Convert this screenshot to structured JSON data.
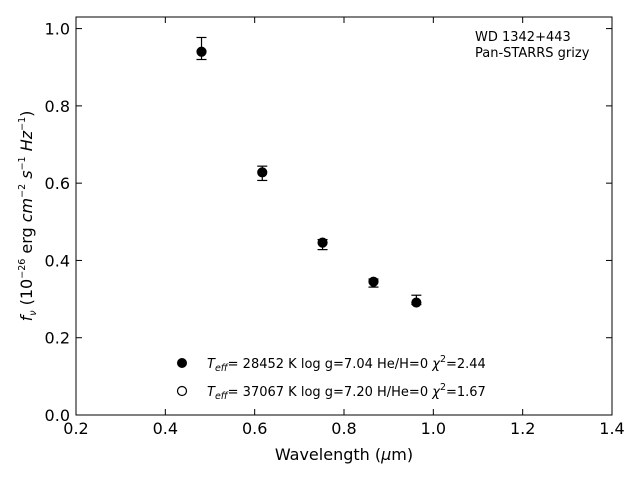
{
  "chart_data": {
    "type": "scatter",
    "xlabel_prefix": "Wavelength (",
    "xlabel_mu": "μ",
    "xlabel_suffix": "m)",
    "ylabel_f": "f",
    "ylabel_nu": "ν",
    "ylabel_rest_1": " (10",
    "ylabel_exp_1": "−26",
    "ylabel_rest_2": " erg ",
    "ylabel_cm": "cm",
    "ylabel_exp_2": "−2",
    "ylabel_space": " ",
    "ylabel_s": "s",
    "ylabel_exp_3": "−1",
    "ylabel_space2": " ",
    "ylabel_hz": "Hz",
    "ylabel_exp_4": "−1",
    "ylabel_close": ")",
    "xlim": [
      0.2,
      1.4
    ],
    "ylim": [
      0.0,
      1.03
    ],
    "x_ticks": [
      "0.2",
      "0.4",
      "0.6",
      "0.8",
      "1.0",
      "1.2",
      "1.4"
    ],
    "y_ticks": [
      "0.0",
      "0.2",
      "0.4",
      "0.6",
      "0.8",
      "1.0"
    ],
    "annotation_line1": "WD 1342+443",
    "annotation_line2": "Pan-STARRS grizy",
    "series": [
      {
        "marker": "filled-circle",
        "color": "#000000",
        "points": [
          {
            "x": 0.481,
            "y": 0.94
          },
          {
            "x": 0.617,
            "y": 0.628
          },
          {
            "x": 0.752,
            "y": 0.446
          },
          {
            "x": 0.866,
            "y": 0.345
          },
          {
            "x": 0.962,
            "y": 0.291
          }
        ]
      },
      {
        "marker": "open-circle",
        "color": "#000000",
        "points": []
      }
    ],
    "errorbars": [
      {
        "x": 0.481,
        "lo": 0.92,
        "hi": 0.977
      },
      {
        "x": 0.617,
        "lo": 0.607,
        "hi": 0.644
      },
      {
        "x": 0.752,
        "lo": 0.428,
        "hi": 0.454
      },
      {
        "x": 0.866,
        "lo": 0.331,
        "hi": 0.352
      },
      {
        "x": 0.962,
        "lo": 0.286,
        "hi": 0.31
      }
    ],
    "legend": [
      {
        "marker": "filled",
        "t_name": "T",
        "t_sub": "eff",
        "params": "= 28452 K  log g=7.04  He/H=0  ",
        "chi": "χ",
        "chi_sup": "2",
        "chi_val": "=2.44"
      },
      {
        "marker": "open",
        "t_name": "T",
        "t_sub": "eff",
        "params": "= 37067 K  log g=7.20  H/He=0  ",
        "chi": "χ",
        "chi_sup": "2",
        "chi_val": "=1.67"
      }
    ],
    "legend_placement": "bottom-center",
    "grid": false
  }
}
